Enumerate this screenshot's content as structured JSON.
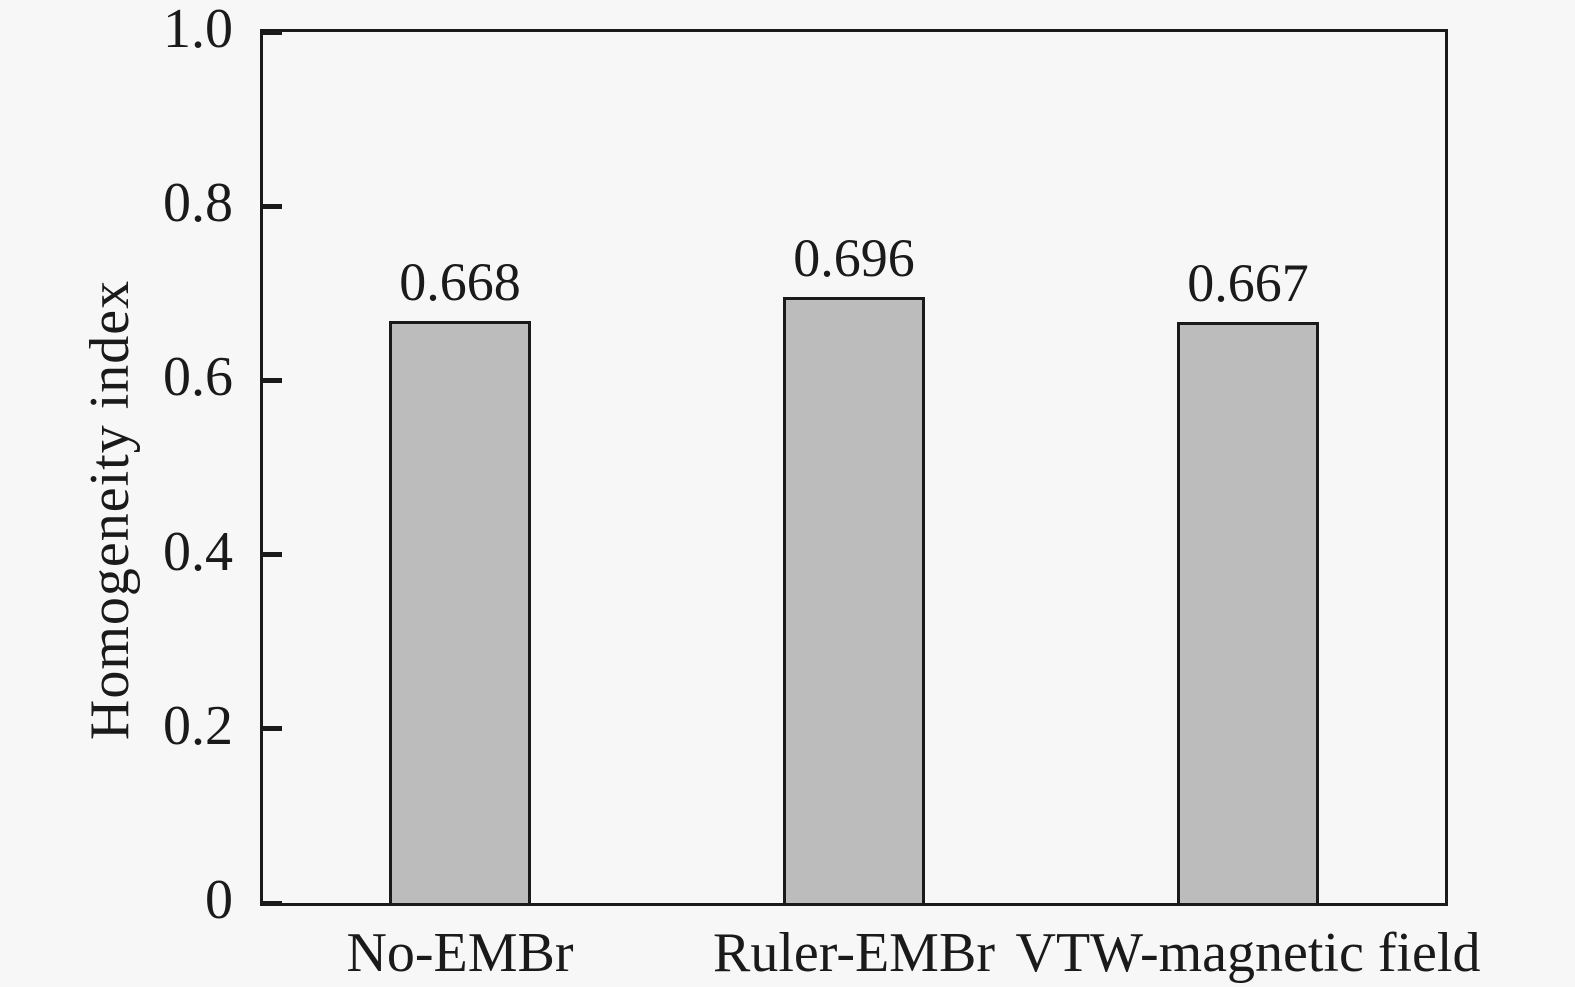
{
  "figure": {
    "background": "#f7f7f7",
    "text_color": "#1a1a1a"
  },
  "chart_data": {
    "type": "bar",
    "categories": [
      "No-EMBr",
      "Ruler-EMBr",
      "VTW-magnetic field"
    ],
    "values": [
      0.668,
      0.696,
      0.667
    ],
    "bar_value_labels": [
      "0.668",
      "0.696",
      "0.667"
    ],
    "title": "",
    "xlabel": "",
    "ylabel": "Homogeneity index",
    "ylim": [
      0,
      1.0
    ],
    "yticks": [
      0,
      0.2,
      0.4,
      0.6,
      0.8,
      1.0
    ],
    "ytick_labels": [
      "0",
      "0.2",
      "0.4",
      "0.6",
      "0.8",
      "1.0"
    ],
    "grid": false,
    "legend": false,
    "tick_direction": "in",
    "bar_fill": "#bcbcbc",
    "bar_border": "#1a1a1a",
    "axis_color": "#1a1a1a"
  }
}
